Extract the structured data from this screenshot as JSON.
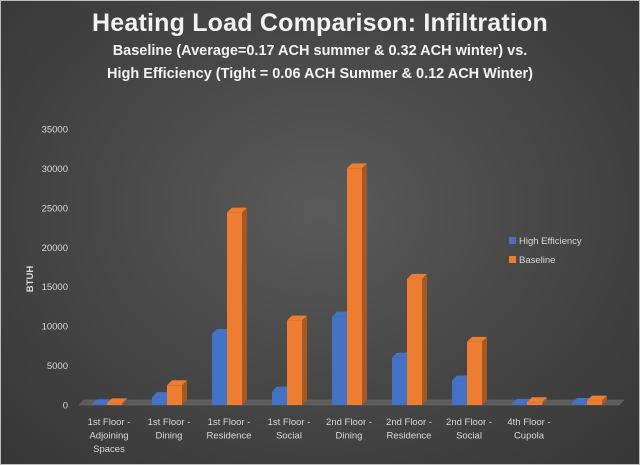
{
  "chart_data": {
    "type": "bar",
    "title": "Heating Load Comparison: Infiltration",
    "subtitle_line1": "Baseline (Average=0.17 ACH summer & 0.32 ACH winter) vs.",
    "subtitle_line2": "High Efficiency (Tight = 0.06 ACH Summer & 0.12 ACH Winter)",
    "xlabel": "",
    "ylabel": "BTUH",
    "ylim": [
      0,
      35000
    ],
    "yticks": [
      0,
      5000,
      10000,
      15000,
      20000,
      25000,
      30000,
      35000
    ],
    "grid": false,
    "legend_position": "right",
    "categories": [
      [
        "1st Floor -",
        "Adjoining",
        "Spaces"
      ],
      [
        "1st Floor -",
        "Dining"
      ],
      [
        "1st Floor -",
        "Residence"
      ],
      [
        "1st Floor -",
        "Social"
      ],
      [
        "2nd Floor -",
        "Dining"
      ],
      [
        "2nd Floor -",
        "Residence"
      ],
      [
        "2nd Floor -",
        "Social"
      ],
      [
        "4th Floor -",
        "Cupola"
      ],
      [
        ""
      ]
    ],
    "series": [
      {
        "name": "High Efficiency",
        "color": "#4472c4",
        "values": [
          100,
          1000,
          9000,
          1700,
          11200,
          6000,
          3100,
          150,
          250
        ]
      },
      {
        "name": "Baseline",
        "color": "#ed7d31",
        "values": [
          200,
          2500,
          24400,
          10700,
          30000,
          16000,
          8000,
          350,
          550
        ]
      }
    ]
  }
}
